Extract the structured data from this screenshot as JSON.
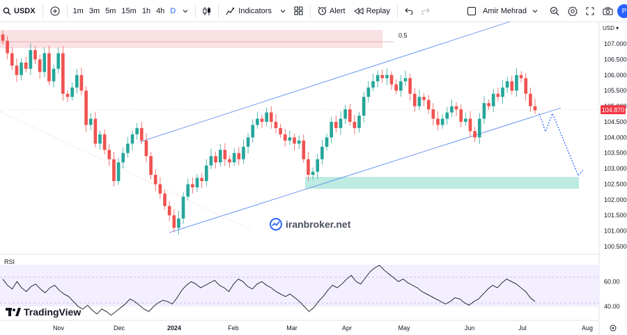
{
  "toolbar": {
    "symbol": "USDX",
    "timeframes": [
      "1m",
      "3m",
      "5m",
      "15m",
      "1h",
      "4h",
      "D"
    ],
    "active_timeframe": "D",
    "indicators_label": "Indicators",
    "alert_label": "Alert",
    "replay_label": "Replay",
    "profile_name": "Amir Mehrad",
    "avatar_letter": "P"
  },
  "chart": {
    "currency_label": "USD",
    "last_price": "104.870",
    "fib_label": "0.5",
    "watermark": "iranbroker.net",
    "logo": "TradingView",
    "rsi_label": "RSI",
    "colors": {
      "up": "#26a69a",
      "down": "#ef5350",
      "channel": "#2962ff",
      "zone": "#b2e6dc",
      "supply": "#f9dadd",
      "price_tag": "#f23645"
    }
  },
  "chart_data": [
    {
      "type": "candlestick",
      "title": "",
      "ylabel": "",
      "y_ticks": [
        "107.000",
        "106.500",
        "106.000",
        "105.500",
        "105.000",
        "104.500",
        "104.000",
        "103.500",
        "103.000",
        "102.500",
        "102.000",
        "101.500",
        "101.000",
        "100.500"
      ],
      "ylim": [
        100.4,
        107.6
      ],
      "x_ticks": [
        "Nov",
        "Dec",
        "2024",
        "Feb",
        "Mar",
        "Apr",
        "May",
        "Jun",
        "Jul",
        "Aug"
      ],
      "close_series": [
        107.1,
        106.7,
        106.3,
        106.0,
        106.4,
        106.2,
        106.8,
        106.5,
        106.1,
        106.7,
        105.8,
        106.2,
        106.7,
        105.4,
        105.3,
        105.6,
        106.0,
        105.5,
        104.4,
        104.6,
        103.8,
        104.1,
        103.6,
        103.3,
        102.6,
        103.2,
        103.5,
        103.8,
        104.1,
        104.3,
        103.9,
        103.4,
        102.8,
        102.5,
        102.2,
        101.8,
        101.5,
        101.1,
        101.4,
        102.1,
        102.5,
        102.4,
        102.7,
        102.6,
        103.1,
        103.4,
        103.2,
        103.6,
        103.3,
        103.2,
        103.5,
        103.3,
        103.7,
        104.0,
        104.4,
        104.6,
        104.5,
        104.8,
        104.5,
        104.3,
        104.1,
        103.9,
        104.0,
        103.8,
        103.9,
        103.3,
        102.8,
        102.9,
        103.3,
        103.7,
        104.0,
        104.5,
        104.3,
        104.6,
        104.9,
        104.5,
        104.3,
        104.7,
        105.3,
        105.6,
        105.8,
        106.0,
        105.9,
        106.0,
        105.7,
        105.5,
        105.8,
        105.9,
        105.4,
        105.0,
        105.3,
        105.2,
        104.9,
        104.6,
        104.4,
        104.6,
        104.8,
        105.0,
        104.9,
        104.5,
        104.6,
        104.2,
        104.0,
        104.6,
        105.1,
        105.0,
        105.4,
        105.3,
        105.6,
        105.8,
        105.5,
        106.0,
        105.9,
        105.4,
        105.0,
        104.87
      ],
      "horizontal_zones": [
        {
          "label": "",
          "from": 106.8,
          "to": 107.4
        },
        {
          "label": "",
          "from": 102.4,
          "to": 102.8
        }
      ],
      "fib_level": {
        "label": "0.5",
        "value": 107.0
      },
      "last_price": 104.87
    },
    {
      "type": "line",
      "title": "RSI",
      "y_ticks": [
        "60.00",
        "40.00"
      ],
      "ylim": [
        30,
        78
      ],
      "series": [
        {
          "values": [
            62,
            57,
            54,
            60,
            55,
            52,
            56,
            58,
            54,
            51,
            55,
            57,
            53,
            50,
            48,
            44,
            40,
            38,
            41,
            37,
            34,
            38,
            36,
            33,
            36,
            39,
            42,
            46,
            44,
            41,
            38,
            36,
            40,
            43,
            45,
            44,
            42,
            47,
            53,
            57,
            60,
            58,
            55,
            57,
            59,
            61,
            57,
            55,
            52,
            58,
            62,
            60,
            56,
            54,
            58,
            60,
            57,
            55,
            52,
            50,
            48,
            50,
            47,
            44,
            40,
            36,
            39,
            44,
            48,
            53,
            57,
            55,
            58,
            62,
            65,
            60,
            58,
            63,
            68,
            71,
            73,
            69,
            66,
            63,
            60,
            62,
            59,
            57,
            55,
            52,
            50,
            48,
            46,
            44,
            42,
            44,
            47,
            46,
            43,
            41,
            44,
            46,
            50,
            54,
            57,
            55,
            59,
            62,
            60,
            58,
            55,
            52,
            47,
            44
          ]
        }
      ]
    }
  ]
}
